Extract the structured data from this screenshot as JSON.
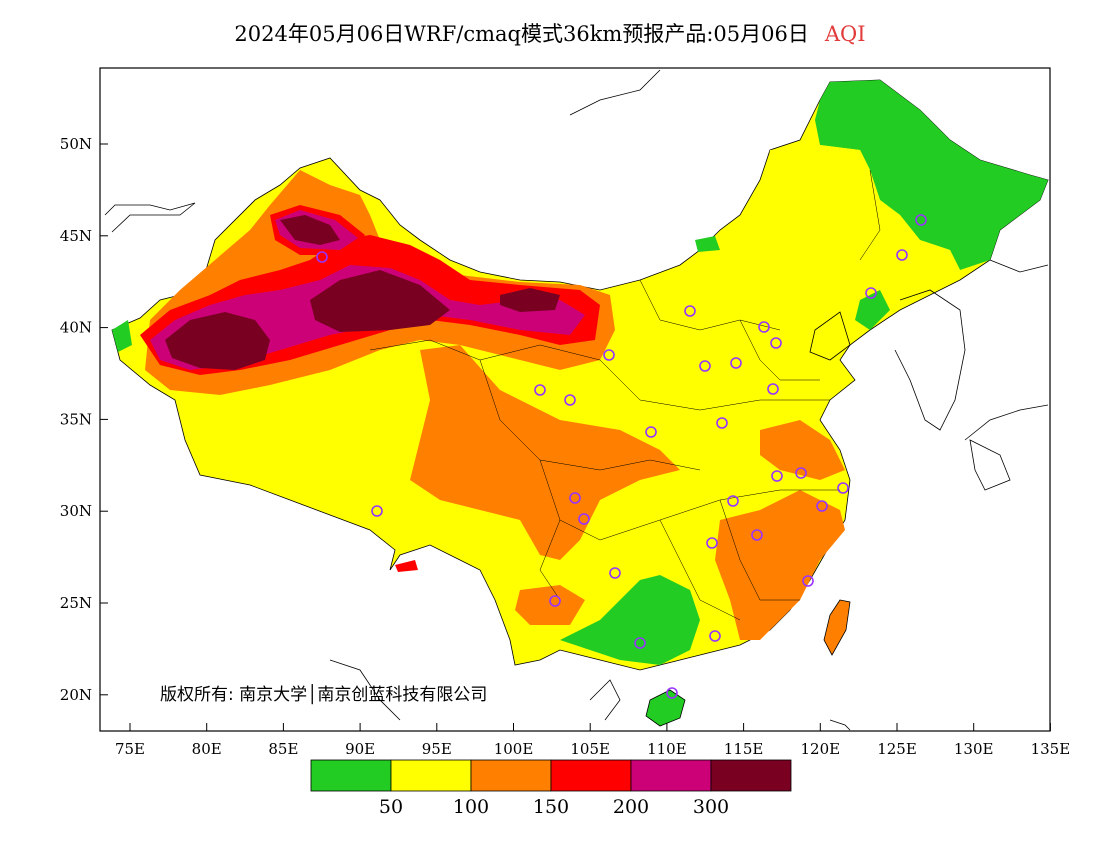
{
  "title": {
    "main": "2024年05月06日WRF/cmaq模式36km预报产品:05月06日",
    "variable": "AQI",
    "variable_color": "#e23b3b"
  },
  "axes": {
    "x_ticks": [
      "75E",
      "80E",
      "85E",
      "90E",
      "95E",
      "100E",
      "105E",
      "110E",
      "115E",
      "120E",
      "125E",
      "130E",
      "135E"
    ],
    "y_ticks": [
      "50N",
      "45N",
      "40N",
      "35N",
      "30N",
      "25N",
      "20N"
    ]
  },
  "copyright": "版权所有: 南京大学│南京创蓝科技有限公司",
  "legend": {
    "colors": [
      "#22cc22",
      "#ffff00",
      "#ff8000",
      "#ff0000",
      "#cc0077",
      "#7a0022"
    ],
    "labels": [
      "50",
      "100",
      "150",
      "200",
      "300"
    ]
  },
  "stations_color": "#9933ff"
}
